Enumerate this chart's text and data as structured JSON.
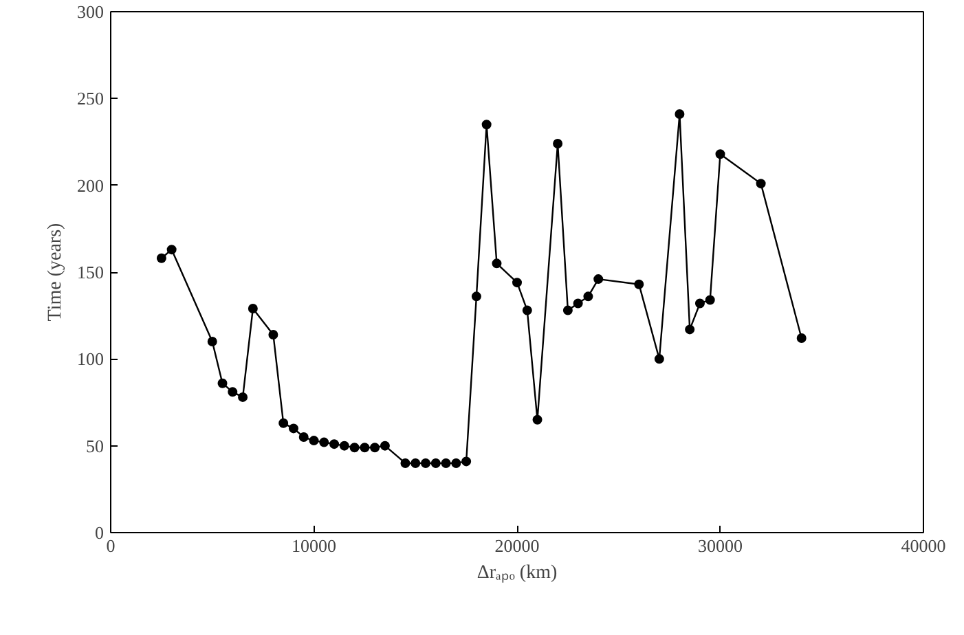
{
  "chart_data": {
    "type": "line",
    "xlabel": "Δrₐₚₒ (km)",
    "ylabel": "Time (years)",
    "xlim": [
      0,
      40000
    ],
    "ylim": [
      0,
      300
    ],
    "xticks": [
      0,
      10000,
      20000,
      30000,
      40000
    ],
    "yticks": [
      0,
      50,
      100,
      150,
      200,
      250,
      300
    ],
    "marker": "circle",
    "line_style": "solid",
    "grid": false,
    "series": [
      {
        "color": "#000000",
        "x": [
          2500,
          3000,
          5000,
          5500,
          6000,
          6500,
          7000,
          8000,
          8500,
          9000,
          9500,
          10000,
          10500,
          11000,
          11500,
          12000,
          12500,
          13000,
          13500,
          14500,
          15000,
          15500,
          16000,
          16500,
          17000,
          17500,
          18000,
          18500,
          19000,
          20000,
          20500,
          21000,
          22000,
          22500,
          23000,
          23500,
          24000,
          26000,
          27000,
          28000,
          28500,
          29000,
          29500,
          30000,
          32000,
          34000
        ],
        "values": [
          158,
          163,
          110,
          86,
          81,
          78,
          129,
          114,
          63,
          60,
          55,
          53,
          52,
          51,
          50,
          49,
          49,
          49,
          50,
          40,
          40,
          40,
          40,
          40,
          40,
          41,
          136,
          235,
          155,
          144,
          128,
          65,
          224,
          128,
          132,
          136,
          146,
          143,
          100,
          241,
          117,
          132,
          134,
          218,
          201,
          112
        ]
      }
    ]
  }
}
